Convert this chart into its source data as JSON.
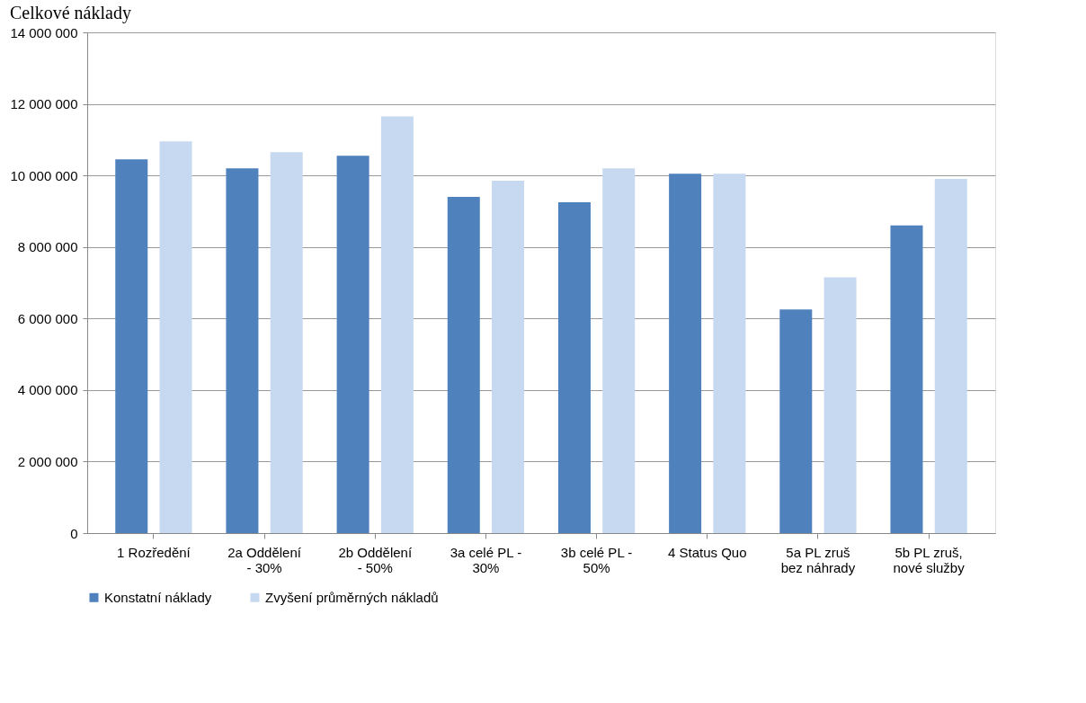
{
  "chart_data": {
    "type": "bar",
    "title": "Celkové náklady",
    "categories": [
      "1 Rozředění",
      "2a Oddělení - 30%",
      "2b Oddělení - 50%",
      "3a celé PL - 30%",
      "3b celé PL - 50%",
      "4 Status Quo",
      "5a PL zruš bez náhrady",
      "5b PL zruš, nové služby"
    ],
    "series": [
      {
        "name": "Konstatní náklady",
        "color": "#4f81bd",
        "values": [
          10450000,
          10200000,
          10550000,
          9400000,
          9250000,
          10050000,
          6250000,
          8600000
        ]
      },
      {
        "name": "Zvyšení průměrných nákladů",
        "color": "#c6d9f0",
        "values": [
          10950000,
          10650000,
          11650000,
          9850000,
          10200000,
          10050000,
          7150000,
          9900000
        ]
      }
    ],
    "ylim": [
      0,
      14000000
    ],
    "yticks": [
      {
        "value": 0,
        "label": "0"
      },
      {
        "value": 2000000,
        "label": "2 000 000"
      },
      {
        "value": 4000000,
        "label": "4 000 000"
      },
      {
        "value": 6000000,
        "label": "6 000 000"
      },
      {
        "value": 8000000,
        "label": "8 000 000"
      },
      {
        "value": 10000000,
        "label": "10 000 000"
      },
      {
        "value": 12000000,
        "label": "12 000 000"
      },
      {
        "value": 14000000,
        "label": "14 000 000"
      }
    ],
    "grid": "y",
    "legend": "bottom"
  }
}
